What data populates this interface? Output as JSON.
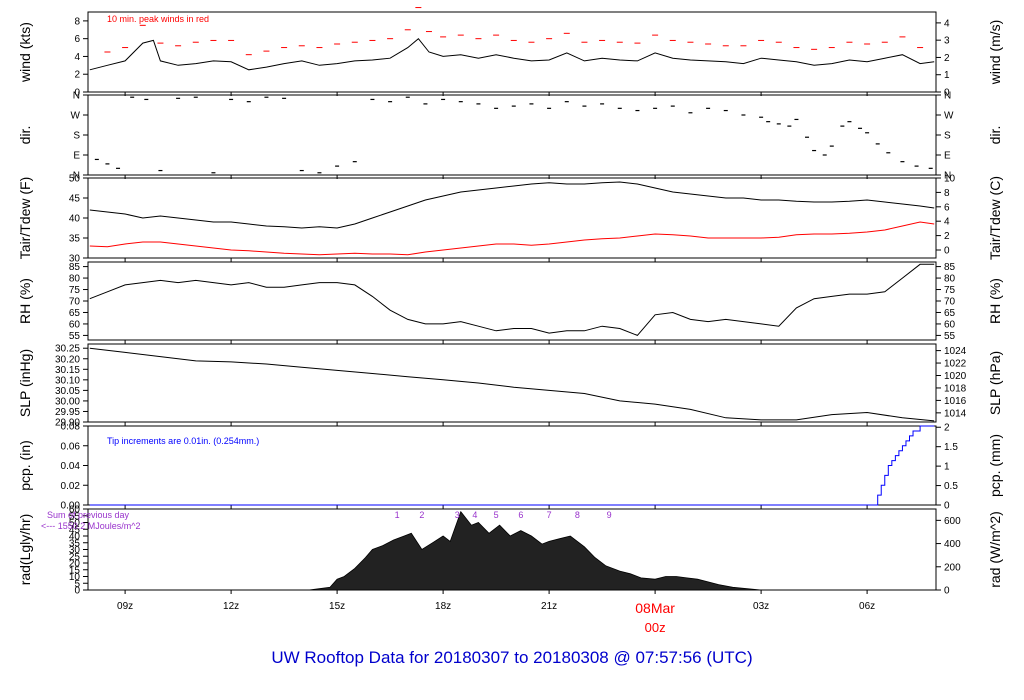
{
  "title": "UW Rooftop Data for 20180307  to  20180308 @ 07:57:56  (UTC)",
  "colors": {
    "black": "#000000",
    "red": "#ff0000",
    "blue": "#0000ff",
    "purple": "#9933cc",
    "title": "#0000cc"
  },
  "x_axis": {
    "tick_labels": [
      "09z",
      "12z",
      "15z",
      "18z",
      "21z",
      "00z",
      "03z",
      "06z"
    ],
    "tick_hours": [
      9,
      12,
      15,
      18,
      21,
      24,
      27,
      30
    ],
    "range_hours": [
      7.95,
      31.95
    ],
    "date_label": "08Mar",
    "date_label_hour": 24
  },
  "panels": {
    "wind": {
      "ylabel_left": "wind (kts)",
      "ylabel_right": "wind (m/s)",
      "left_ticks": [
        "0",
        "2",
        "4",
        "6",
        "8"
      ],
      "right_ticks": [
        "0",
        "1",
        "2",
        "3",
        "4"
      ],
      "note": "10 min. peak winds in red"
    },
    "dir": {
      "ylabel_left": "dir.",
      "ylabel_right": "dir.",
      "ticks": [
        "N",
        "E",
        "S",
        "W",
        "N"
      ]
    },
    "temp": {
      "ylabel_left": "Tair/Tdew (F)",
      "ylabel_right": "Tair/Tdew (C)",
      "left_ticks": [
        "30",
        "35",
        "40",
        "45",
        "50"
      ],
      "right_ticks": [
        "0",
        "2",
        "4",
        "6",
        "8",
        "10"
      ]
    },
    "rh": {
      "ylabel_left": "RH (%)",
      "ylabel_right": "RH (%)",
      "ticks": [
        "55",
        "60",
        "65",
        "70",
        "75",
        "80",
        "85"
      ]
    },
    "slp": {
      "ylabel_left": "SLP (inHg)",
      "ylabel_right": "SLP (hPa)",
      "left_ticks": [
        "29.90",
        "29.95",
        "30.00",
        "30.05",
        "30.10",
        "30.15",
        "30.20",
        "30.25"
      ],
      "right_ticks": [
        "1014",
        "1016",
        "1018",
        "1020",
        "1022",
        "1024"
      ]
    },
    "pcp": {
      "ylabel_left": "pcp. (in)",
      "ylabel_right": "pcp. (mm)",
      "left_ticks": [
        "0.00",
        "0.02",
        "0.04",
        "0.06",
        "0.08"
      ],
      "right_ticks": [
        "0",
        "0.5",
        "1",
        "1.5",
        "2"
      ],
      "note": "Tip increments are 0.01in. (0.254mm.)"
    },
    "rad": {
      "ylabel_left": "rad(Lgly/hr)",
      "ylabel_right": "rad (W/m^2)",
      "left_ticks": [
        "0",
        "5",
        "10",
        "15",
        "20",
        "25",
        "30",
        "35",
        "40",
        "45",
        "50",
        "55",
        "60"
      ],
      "right_ticks": [
        "0",
        "200",
        "400",
        "600"
      ],
      "sum_label_1": "Sum of previous day",
      "sum_label_2": "<--- 1550.2 MJoules/m^2",
      "markers": [
        "1",
        "2",
        "3",
        "4",
        "5",
        "6",
        "7",
        "8",
        "9"
      ]
    }
  },
  "chart_data": [
    {
      "type": "line",
      "name": "wind",
      "ylim": [
        0,
        9
      ],
      "series": [
        {
          "name": "wind",
          "color": "#000000",
          "x": [
            8,
            8.5,
            9,
            9.5,
            9.8,
            10,
            10.5,
            11,
            11.5,
            12,
            12.5,
            13,
            13.5,
            14,
            14.5,
            15,
            15.5,
            16,
            16.5,
            17,
            17.3,
            17.6,
            18,
            18.5,
            19,
            19.5,
            20,
            20.5,
            21,
            21.5,
            22,
            22.5,
            23,
            23.5,
            24,
            24.5,
            25,
            25.5,
            26,
            26.5,
            27,
            27.5,
            28,
            28.5,
            29,
            29.5,
            30,
            30.5,
            31,
            31.5,
            31.9
          ],
          "y": [
            2.5,
            3,
            3.5,
            5.5,
            5.8,
            3.5,
            3,
            3.2,
            3.5,
            3.4,
            2.5,
            2.8,
            3.2,
            3.5,
            3,
            3.2,
            3.5,
            3.6,
            3.8,
            5,
            6,
            4.5,
            4,
            4.2,
            3.8,
            4.2,
            3.8,
            3.5,
            3.6,
            4.4,
            3.5,
            3.8,
            3.6,
            3.5,
            4.4,
            3.8,
            3.6,
            3.5,
            3.4,
            3.2,
            3.8,
            3.6,
            3.4,
            3.0,
            3.2,
            3.6,
            3.4,
            3.8,
            4.2,
            3.2,
            3.4
          ]
        },
        {
          "name": "10 min. peak winds",
          "color": "#ff0000",
          "x": [
            8.5,
            9,
            9.5,
            10,
            10.5,
            11,
            11.5,
            12,
            12.5,
            13,
            13.5,
            14,
            14.5,
            15,
            15.5,
            16,
            16.5,
            17,
            17.3,
            17.6,
            18,
            18.5,
            19,
            19.5,
            20,
            20.5,
            21,
            21.5,
            22,
            22.5,
            23,
            23.5,
            24,
            24.5,
            25,
            25.5,
            26,
            26.5,
            27,
            27.5,
            28,
            28.5,
            29,
            29.5,
            30,
            30.5,
            31,
            31.5
          ],
          "y": [
            4.5,
            5,
            7.5,
            5.5,
            5.2,
            5.6,
            5.8,
            5.8,
            4.2,
            4.6,
            5,
            5.2,
            5,
            5.4,
            5.6,
            5.8,
            6,
            7,
            9.5,
            6.8,
            6.2,
            6.4,
            6,
            6.4,
            5.8,
            5.6,
            6,
            6.6,
            5.6,
            5.8,
            5.6,
            5.5,
            6.4,
            5.8,
            5.6,
            5.4,
            5.2,
            5.2,
            5.8,
            5.6,
            5,
            4.8,
            5,
            5.6,
            5.4,
            5.6,
            6.2,
            5
          ]
        }
      ]
    },
    {
      "type": "scatter",
      "name": "dir",
      "ylim": [
        0,
        360
      ],
      "series": [
        {
          "name": "dir",
          "color": "#000000",
          "x": [
            8.2,
            8.5,
            8.8,
            9.2,
            9.6,
            10,
            10.5,
            11,
            11.5,
            12,
            12.5,
            13,
            13.5,
            14,
            14.5,
            15,
            15.5,
            16,
            16.5,
            17,
            17.5,
            18,
            18.5,
            19,
            19.5,
            20,
            20.5,
            21,
            21.5,
            22,
            22.5,
            23,
            23.5,
            24,
            24.5,
            25,
            25.5,
            26,
            26.5,
            27,
            27.2,
            27.5,
            27.8,
            28,
            28.3,
            28.5,
            28.8,
            29,
            29.3,
            29.5,
            29.8,
            30,
            30.3,
            30.6,
            31,
            31.4,
            31.8
          ],
          "y": [
            70,
            50,
            30,
            350,
            340,
            20,
            345,
            350,
            10,
            340,
            330,
            350,
            345,
            20,
            10,
            40,
            60,
            340,
            330,
            350,
            320,
            340,
            330,
            320,
            300,
            310,
            320,
            300,
            330,
            310,
            320,
            300,
            290,
            300,
            310,
            280,
            300,
            290,
            270,
            260,
            240,
            230,
            220,
            250,
            170,
            110,
            90,
            130,
            220,
            240,
            210,
            190,
            140,
            100,
            60,
            40,
            30
          ]
        }
      ]
    },
    {
      "type": "line",
      "name": "temp",
      "ylim": [
        30,
        50
      ],
      "series": [
        {
          "name": "Tair",
          "color": "#000000",
          "x": [
            8,
            8.5,
            9,
            9.5,
            10,
            10.5,
            11,
            11.5,
            12,
            12.5,
            13,
            13.5,
            14,
            14.5,
            15,
            15.5,
            16,
            16.5,
            17,
            17.5,
            18,
            18.5,
            19,
            19.5,
            20,
            20.5,
            21,
            21.5,
            22,
            22.5,
            23,
            23.5,
            24,
            24.5,
            25,
            25.5,
            26,
            26.5,
            27,
            27.5,
            28,
            28.5,
            29,
            29.5,
            30,
            30.5,
            31,
            31.5,
            31.9
          ],
          "y": [
            42,
            41.5,
            41,
            40,
            40.5,
            40,
            39.5,
            39,
            39,
            38.5,
            38,
            37.8,
            37.5,
            37.8,
            37.5,
            38.5,
            40,
            41.5,
            43,
            44.5,
            45.5,
            46.5,
            47,
            47.5,
            48,
            48.5,
            48.8,
            48.5,
            48.5,
            48.8,
            49,
            48.5,
            47.5,
            46.5,
            46,
            45.5,
            45,
            45,
            44.5,
            44.5,
            44.2,
            44,
            44,
            44.2,
            44.5,
            44,
            43.5,
            43,
            42.5
          ]
        },
        {
          "name": "Tdew",
          "color": "#ff0000",
          "x": [
            8,
            8.5,
            9,
            9.5,
            10,
            10.5,
            11,
            11.5,
            12,
            12.5,
            13,
            13.5,
            14,
            14.5,
            15,
            15.5,
            16,
            16.5,
            17,
            17.5,
            18,
            18.5,
            19,
            19.5,
            20,
            20.5,
            21,
            21.5,
            22,
            22.5,
            23,
            23.5,
            24,
            24.5,
            25,
            25.5,
            26,
            26.5,
            27,
            27.5,
            28,
            28.5,
            29,
            29.5,
            30,
            30.5,
            31,
            31.5,
            31.9
          ],
          "y": [
            33,
            32.8,
            33.5,
            34,
            34,
            33.5,
            33,
            32.5,
            32,
            31.8,
            31.5,
            31.2,
            31,
            30.8,
            31,
            31.2,
            31,
            31,
            30.8,
            31.5,
            32,
            32.5,
            33,
            33.5,
            33.5,
            33.2,
            33.5,
            34,
            34.5,
            34.8,
            35,
            35.5,
            36,
            35.8,
            35.5,
            35,
            35,
            35,
            35,
            35.2,
            35.8,
            36,
            36,
            36.2,
            36.5,
            37,
            38,
            39,
            38.5
          ]
        }
      ]
    },
    {
      "type": "line",
      "name": "RH",
      "ylim": [
        53,
        87
      ],
      "series": [
        {
          "name": "RH",
          "color": "#000000",
          "x": [
            8,
            8.5,
            9,
            9.5,
            10,
            10.5,
            11,
            11.5,
            12,
            12.5,
            13,
            13.5,
            14,
            14.5,
            15,
            15.5,
            16,
            16.5,
            17,
            17.5,
            18,
            18.5,
            19,
            19.5,
            20,
            20.5,
            21,
            21.5,
            22,
            22.5,
            23,
            23.5,
            24,
            24.5,
            25,
            25.5,
            26,
            26.5,
            27,
            27.5,
            28,
            28.5,
            29,
            29.5,
            30,
            30.5,
            31,
            31.5,
            31.9
          ],
          "y": [
            71,
            74,
            77,
            78,
            79,
            78,
            79,
            78,
            77,
            78,
            76,
            76,
            77,
            78,
            78,
            77,
            72,
            66,
            62,
            60,
            60,
            61,
            59,
            57,
            58,
            58,
            56,
            57,
            57,
            59,
            58,
            55,
            64,
            65,
            62,
            61,
            62,
            61,
            60,
            59,
            67,
            71,
            72,
            73,
            73,
            74,
            80,
            86,
            86
          ]
        }
      ]
    },
    {
      "type": "line",
      "name": "SLP",
      "ylim": [
        29.9,
        30.27
      ],
      "series": [
        {
          "name": "SLP",
          "color": "#000000",
          "x": [
            8,
            9,
            10,
            11,
            12,
            13,
            14,
            15,
            16,
            17,
            18,
            19,
            20,
            21,
            22,
            23,
            24,
            25,
            26,
            27,
            28,
            29,
            30,
            31,
            31.9
          ],
          "y": [
            30.25,
            30.23,
            30.21,
            30.19,
            30.185,
            30.175,
            30.16,
            30.145,
            30.13,
            30.115,
            30.1,
            30.085,
            30.065,
            30.05,
            30.035,
            30.0,
            29.985,
            29.96,
            29.92,
            29.91,
            29.91,
            29.935,
            29.945,
            29.92,
            29.905
          ]
        }
      ]
    },
    {
      "type": "line",
      "name": "pcp",
      "ylim": [
        0,
        0.08
      ],
      "series": [
        {
          "name": "pcp",
          "color": "#0000ff",
          "x": [
            8,
            30.2,
            30.3,
            30.4,
            30.5,
            30.6,
            30.7,
            30.8,
            30.9,
            31.0,
            31.1,
            31.2,
            31.3,
            31.5,
            31.9
          ],
          "y": [
            0,
            0,
            0.01,
            0.02,
            0.03,
            0.04,
            0.045,
            0.05,
            0.055,
            0.06,
            0.065,
            0.07,
            0.075,
            0.08,
            0.08
          ]
        }
      ]
    },
    {
      "type": "area",
      "name": "rad",
      "ylim": [
        0,
        60
      ],
      "series": [
        {
          "name": "rad",
          "color": "#000000",
          "x": [
            14.2,
            14.5,
            14.8,
            15,
            15.2,
            15.5,
            15.8,
            16,
            16.3,
            16.6,
            16.9,
            17.1,
            17.4,
            17.7,
            18,
            18.2,
            18.5,
            18.8,
            19,
            19.3,
            19.6,
            19.9,
            20.2,
            20.5,
            20.8,
            21,
            21.3,
            21.6,
            22,
            22.3,
            22.6,
            23,
            23.3,
            23.6,
            24,
            24.3,
            24.6,
            24.9,
            25.2,
            25.5,
            25.8,
            26.2,
            26.6,
            27
          ],
          "y": [
            0,
            1,
            2,
            8,
            10,
            16,
            24,
            30,
            33,
            37,
            40,
            42,
            30,
            35,
            40,
            36,
            58,
            48,
            50,
            42,
            48,
            40,
            44,
            40,
            34,
            36,
            38,
            40,
            32,
            24,
            18,
            14,
            12,
            9,
            8,
            10,
            10,
            9,
            8,
            6,
            4,
            2,
            1,
            0
          ]
        }
      ],
      "markers_x": [
        16.7,
        17.4,
        18.4,
        18.9,
        19.5,
        20.2,
        21.0,
        21.8,
        22.7
      ]
    }
  ]
}
